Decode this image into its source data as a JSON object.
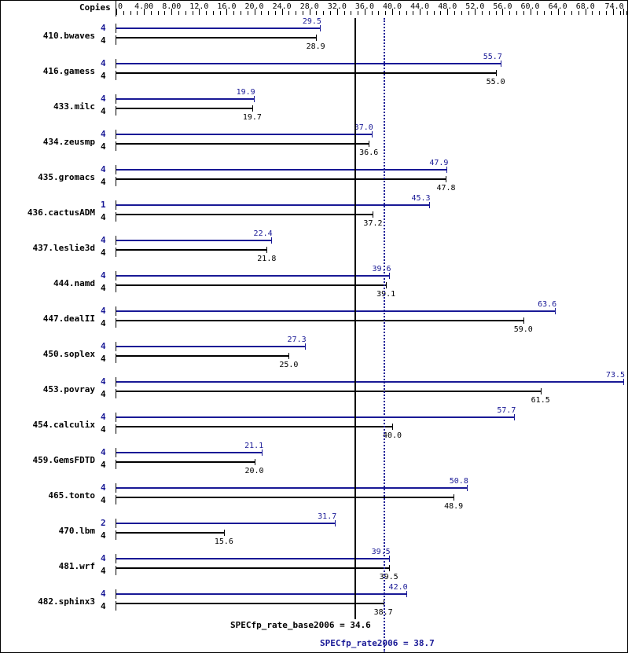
{
  "chart_data": {
    "type": "bar",
    "orientation": "horizontal",
    "title": "",
    "xlabel": "",
    "ylabel": "",
    "column_header": "Copies",
    "xlim": [
      0,
      74.0
    ],
    "ticks": [
      "0",
      "4.00",
      "8.00",
      "12.0",
      "16.0",
      "20.0",
      "24.0",
      "28.0",
      "32.0",
      "36.0",
      "40.0",
      "44.0",
      "48.0",
      "52.0",
      "56.0",
      "60.0",
      "64.0",
      "68.0",
      "74.0"
    ],
    "categories": [
      "410.bwaves",
      "416.gamess",
      "433.milc",
      "434.zeusmp",
      "435.gromacs",
      "436.cactusADM",
      "437.leslie3d",
      "444.namd",
      "447.dealII",
      "450.soplex",
      "453.povray",
      "454.calculix",
      "459.GemsFDTD",
      "465.tonto",
      "470.lbm",
      "481.wrf",
      "482.sphinx3"
    ],
    "series": [
      {
        "name": "peak",
        "color": "#191996",
        "copies": [
          4,
          4,
          4,
          4,
          4,
          1,
          4,
          4,
          4,
          4,
          4,
          4,
          4,
          4,
          2,
          4,
          4
        ],
        "values": [
          29.5,
          55.7,
          19.9,
          37.0,
          47.9,
          45.3,
          22.4,
          39.6,
          63.6,
          27.3,
          73.5,
          57.7,
          21.1,
          50.8,
          31.7,
          39.5,
          42.0
        ]
      },
      {
        "name": "base",
        "color": "#000000",
        "copies": [
          4,
          4,
          4,
          4,
          4,
          4,
          4,
          4,
          4,
          4,
          4,
          4,
          4,
          4,
          4,
          4,
          4
        ],
        "values": [
          28.9,
          55.0,
          19.7,
          36.6,
          47.8,
          37.2,
          21.8,
          39.1,
          59.0,
          25.0,
          61.5,
          40.0,
          20.0,
          48.9,
          15.6,
          39.5,
          38.7
        ]
      }
    ],
    "reference_lines": [
      {
        "name": "SPECfp_rate_base2006",
        "value": 34.6,
        "style": "solid",
        "color": "#000000"
      },
      {
        "name": "SPECfp_rate2006",
        "value": 38.7,
        "style": "dotted",
        "color": "#191996"
      }
    ],
    "legend": "none",
    "grid": false
  },
  "labels": {
    "copies_header": "Copies",
    "base_summary": "SPECfp_rate_base2006 = 34.6",
    "peak_summary": "SPECfp_rate2006 = 38.7"
  }
}
